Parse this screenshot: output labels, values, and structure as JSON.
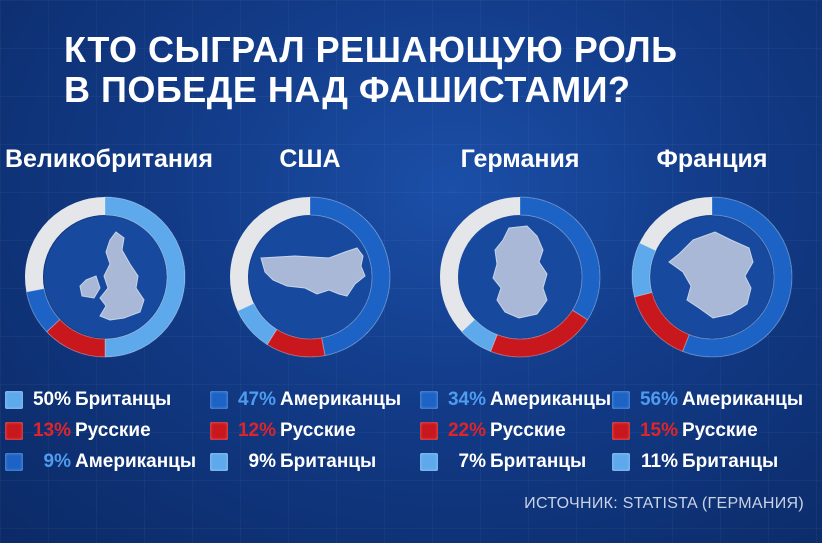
{
  "title_lines": [
    "Кто сыграл решающую роль",
    "в победе над фашистами?"
  ],
  "source": "ИСТОЧНИК: STATISTA (ГЕРМАНИЯ)",
  "colors": {
    "light": "#5ea8ec",
    "red": "#c8181e",
    "blue": "#1d63c6",
    "grey": "#e4e6ea",
    "red_text": "#e0242a",
    "blue_text": "#4e9cf0"
  },
  "chart_data": [
    {
      "type": "pie",
      "country": "Великобритания",
      "map_icon": "uk-map-icon",
      "values": [
        {
          "label": "Британцы",
          "value": 50,
          "pct": "50%",
          "color": "light"
        },
        {
          "label": "Русские",
          "value": 13,
          "pct": "13%",
          "color": "red"
        },
        {
          "label": "Американцы",
          "value": 9,
          "pct": "9%",
          "color": "blue"
        }
      ],
      "rest_color": "grey"
    },
    {
      "type": "pie",
      "country": "США",
      "map_icon": "usa-map-icon",
      "values": [
        {
          "label": "Американцы",
          "value": 47,
          "pct": "47%",
          "color": "blue"
        },
        {
          "label": "Русские",
          "value": 12,
          "pct": "12%",
          "color": "red"
        },
        {
          "label": "Британцы",
          "value": 9,
          "pct": "9%",
          "color": "light"
        }
      ],
      "rest_color": "grey"
    },
    {
      "type": "pie",
      "country": "Германия",
      "map_icon": "germany-map-icon",
      "values": [
        {
          "label": "Американцы",
          "value": 34,
          "pct": "34%",
          "color": "blue"
        },
        {
          "label": "Русские",
          "value": 22,
          "pct": "22%",
          "color": "red"
        },
        {
          "label": "Британцы",
          "value": 7,
          "pct": "7%",
          "color": "light"
        }
      ],
      "rest_color": "grey"
    },
    {
      "type": "pie",
      "country": "Франция",
      "map_icon": "france-map-icon",
      "values": [
        {
          "label": "Американцы",
          "value": 56,
          "pct": "56%",
          "color": "blue"
        },
        {
          "label": "Русские",
          "value": 15,
          "pct": "15%",
          "color": "red"
        },
        {
          "label": "Британцы",
          "value": 11,
          "pct": "11%",
          "color": "light"
        }
      ],
      "rest_color": "grey"
    }
  ]
}
